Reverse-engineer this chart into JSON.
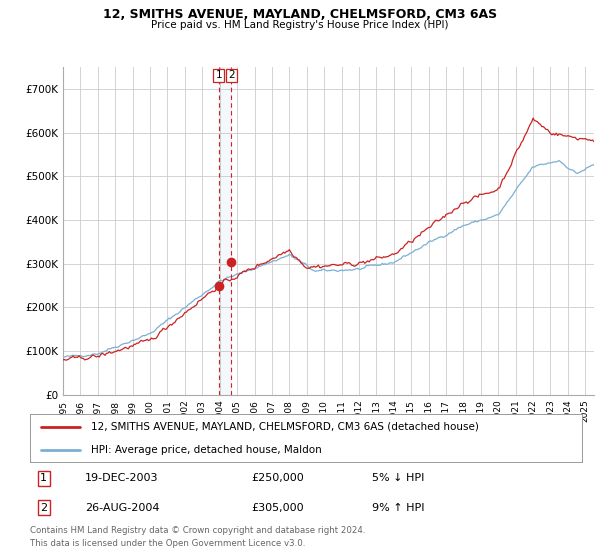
{
  "title": "12, SMITHS AVENUE, MAYLAND, CHELMSFORD, CM3 6AS",
  "subtitle": "Price paid vs. HM Land Registry's House Price Index (HPI)",
  "legend_line1": "12, SMITHS AVENUE, MAYLAND, CHELMSFORD, CM3 6AS (detached house)",
  "legend_line2": "HPI: Average price, detached house, Maldon",
  "transaction1_date": "19-DEC-2003",
  "transaction1_price": "£250,000",
  "transaction1_hpi": "5% ↓ HPI",
  "transaction2_date": "26-AUG-2004",
  "transaction2_price": "£305,000",
  "transaction2_hpi": "9% ↑ HPI",
  "footnote": "Contains HM Land Registry data © Crown copyright and database right 2024.\nThis data is licensed under the Open Government Licence v3.0.",
  "hpi_color": "#7ab0d4",
  "price_color": "#cc2222",
  "vline_color": "#cc2222",
  "grid_color": "#cccccc",
  "bg_color": "#ffffff",
  "ylim_min": 0,
  "ylim_max": 750000,
  "xlim_min": 1995.0,
  "xlim_max": 2025.5,
  "yticks": [
    0,
    100000,
    200000,
    300000,
    400000,
    500000,
    600000,
    700000
  ],
  "ytick_labels": [
    "£0",
    "£100K",
    "£200K",
    "£300K",
    "£400K",
    "£500K",
    "£600K",
    "£700K"
  ],
  "xticks": [
    1995,
    1996,
    1997,
    1998,
    1999,
    2000,
    2001,
    2002,
    2003,
    2004,
    2005,
    2006,
    2007,
    2008,
    2009,
    2010,
    2011,
    2012,
    2013,
    2014,
    2015,
    2016,
    2017,
    2018,
    2019,
    2020,
    2021,
    2022,
    2023,
    2024,
    2025
  ],
  "transaction1_x": 2003.96,
  "transaction2_x": 2004.65,
  "transaction1_y": 250000,
  "transaction2_y": 305000
}
